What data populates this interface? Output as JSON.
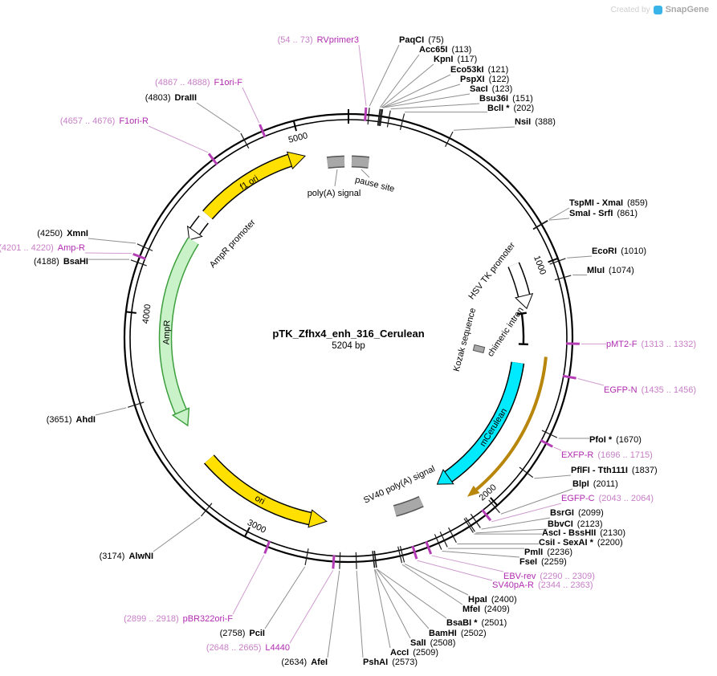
{
  "watermark": {
    "prefix": "Created by",
    "brand": "SnapGene"
  },
  "plasmid": {
    "name": "pTK_Zfhx4_enh_316_Cerulean",
    "size": "5204 bp",
    "total_bp": 5204
  },
  "scale": {
    "ticks": [
      "5000",
      "1000",
      "2000",
      "3000",
      "4000"
    ]
  },
  "colors": {
    "yellow": "#ffe000",
    "pale_green": "#c9f2c9",
    "green_border": "#3c9e3c",
    "cyan": "#00eaff",
    "gold": "#b8860b",
    "gray_box": "#a8a8a8",
    "white": "#ffffff",
    "primer_purple": "#b02cb0"
  },
  "features": {
    "f1_ori": {
      "label": "f1 ori"
    },
    "ampr_promoter": {
      "label": "AmpR promoter"
    },
    "ampr": {
      "label": "AmpR"
    },
    "ori": {
      "label": "ori"
    },
    "mcerulean": {
      "label": "mCerulean"
    },
    "chimeric_intron": {
      "label": "chimeric intron"
    },
    "hsv_tk_promoter": {
      "label": "HSV TK promoter"
    },
    "kozak": {
      "label": "Kozak sequence"
    },
    "sv40_polya": {
      "label": "SV40 poly(A) signal"
    },
    "polya": {
      "label": "poly(A) signal"
    },
    "pause_site": {
      "label": "pause site"
    }
  },
  "sites": [
    {
      "name": "RVprimer3",
      "pos": "(54 .. 73)",
      "bp": 63,
      "type": "primer"
    },
    {
      "name": "PaqCI",
      "pos": "(75)",
      "bp": 75,
      "type": "enzyme"
    },
    {
      "name": "Acc65I",
      "pos": "(113)",
      "bp": 113,
      "type": "enzyme"
    },
    {
      "name": "KpnI",
      "pos": "(117)",
      "bp": 117,
      "type": "enzyme"
    },
    {
      "name": "Eco53kI",
      "pos": "(121)",
      "bp": 121,
      "type": "enzyme"
    },
    {
      "name": "PspXI",
      "pos": "(122)",
      "bp": 122,
      "type": "enzyme"
    },
    {
      "name": "SacI",
      "pos": "(123)",
      "bp": 123,
      "type": "enzyme"
    },
    {
      "name": "Bsu36I",
      "pos": "(151)",
      "bp": 151,
      "type": "enzyme"
    },
    {
      "name": "BclI *",
      "pos": "(202)",
      "bp": 202,
      "type": "enzyme"
    },
    {
      "name": "NsiI",
      "pos": "(388)",
      "bp": 388,
      "type": "enzyme"
    },
    {
      "name": "TspMI - XmaI",
      "pos": "(859)",
      "bp": 859,
      "type": "enzyme"
    },
    {
      "name": "SmaI - SrfI",
      "pos": "(861)",
      "bp": 861,
      "type": "enzyme"
    },
    {
      "name": "EcoRI",
      "pos": "(1010)",
      "bp": 1010,
      "type": "enzyme"
    },
    {
      "name": "MluI",
      "pos": "(1074)",
      "bp": 1074,
      "type": "enzyme"
    },
    {
      "name": "pMT2-F",
      "pos": "(1313 .. 1332)",
      "bp": 1322,
      "type": "primer"
    },
    {
      "name": "EGFP-N",
      "pos": "(1435 .. 1456)",
      "bp": 1446,
      "type": "primer"
    },
    {
      "name": "PfoI *",
      "pos": "(1670)",
      "bp": 1670,
      "type": "enzyme"
    },
    {
      "name": "EXFP-R",
      "pos": "(1696 .. 1715)",
      "bp": 1706,
      "type": "primer"
    },
    {
      "name": "PflFI - Tth111I",
      "pos": "(1837)",
      "bp": 1837,
      "type": "enzyme"
    },
    {
      "name": "BlpI",
      "pos": "(2011)",
      "bp": 2011,
      "type": "enzyme"
    },
    {
      "name": "EGFP-C",
      "pos": "(2043 .. 2064)",
      "bp": 2054,
      "type": "primer"
    },
    {
      "name": "BsrGI",
      "pos": "(2099)",
      "bp": 2099,
      "type": "enzyme"
    },
    {
      "name": "BbvCI",
      "pos": "(2123)",
      "bp": 2123,
      "type": "enzyme"
    },
    {
      "name": "AscI - BssHII",
      "pos": "(2130)",
      "bp": 2130,
      "type": "enzyme"
    },
    {
      "name": "CsiI - SexAI *",
      "pos": "(2200)",
      "bp": 2200,
      "type": "enzyme"
    },
    {
      "name": "PmlI",
      "pos": "(2236)",
      "bp": 2236,
      "type": "enzyme"
    },
    {
      "name": "FseI",
      "pos": "(2259)",
      "bp": 2259,
      "type": "enzyme"
    },
    {
      "name": "EBV-rev",
      "pos": "(2290 .. 2309)",
      "bp": 2300,
      "type": "primer"
    },
    {
      "name": "SV40pA-R",
      "pos": "(2344 .. 2363)",
      "bp": 2354,
      "type": "primer"
    },
    {
      "name": "HpaI",
      "pos": "(2400)",
      "bp": 2400,
      "type": "enzyme"
    },
    {
      "name": "MfeI",
      "pos": "(2409)",
      "bp": 2409,
      "type": "enzyme"
    },
    {
      "name": "BsaBI *",
      "pos": "(2501)",
      "bp": 2501,
      "type": "enzyme"
    },
    {
      "name": "BamHI",
      "pos": "(2502)",
      "bp": 2502,
      "type": "enzyme"
    },
    {
      "name": "SalI",
      "pos": "(2508)",
      "bp": 2508,
      "type": "enzyme"
    },
    {
      "name": "AccI",
      "pos": "(2509)",
      "bp": 2509,
      "type": "enzyme"
    },
    {
      "name": "PshAI",
      "pos": "(2573)",
      "bp": 2573,
      "type": "enzyme"
    },
    {
      "name": "AfeI",
      "pos": "(2634)",
      "bp": 2634,
      "type": "enzyme"
    },
    {
      "name": "L4440",
      "pos": "(2648 .. 2665)",
      "bp": 2657,
      "type": "primer"
    },
    {
      "name": "PciI",
      "pos": "(2758)",
      "bp": 2758,
      "type": "enzyme"
    },
    {
      "name": "pBR322ori-F",
      "pos": "(2899 .. 2918)",
      "bp": 2909,
      "type": "primer"
    },
    {
      "name": "AlwNI",
      "pos": "(3174)",
      "bp": 3174,
      "type": "enzyme"
    },
    {
      "name": "AhdI",
      "pos": "(3651)",
      "bp": 3651,
      "type": "enzyme"
    },
    {
      "name": "BsaHI",
      "pos": "(4188)",
      "bp": 4188,
      "type": "enzyme"
    },
    {
      "name": "Amp-R",
      "pos": "(4201 .. 4220)",
      "bp": 4211,
      "type": "primer"
    },
    {
      "name": "XmnI",
      "pos": "(4250)",
      "bp": 4250,
      "type": "enzyme"
    },
    {
      "name": "F1ori-R",
      "pos": "(4657 .. 4676)",
      "bp": 4667,
      "type": "primer"
    },
    {
      "name": "DraIII",
      "pos": "(4803)",
      "bp": 4803,
      "type": "enzyme"
    },
    {
      "name": "F1ori-F",
      "pos": "(4867 .. 4888)",
      "bp": 4878,
      "type": "primer"
    }
  ]
}
